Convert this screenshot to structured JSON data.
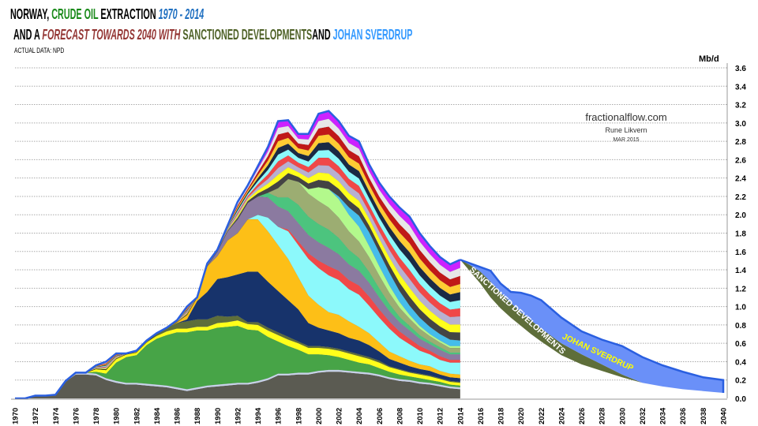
{
  "title": {
    "line1": [
      {
        "text": "NORWAY, ",
        "color": "#000000",
        "italic": false
      },
      {
        "text": "CRUDE OIL",
        "color": "#1a8a1a",
        "italic": false
      },
      {
        "text": " EXTRACTION ",
        "color": "#000000",
        "italic": false
      },
      {
        "text": "1970 - 2014",
        "color": "#1f6fc0",
        "italic": true
      }
    ],
    "line2": [
      {
        "text": "AND A ",
        "color": "#000000",
        "italic": false
      },
      {
        "text": "FORECAST TOWARDS 2040 WITH ",
        "color": "#943634",
        "italic": true
      },
      {
        "text": "SANCTIONED DEVELOPMENTS",
        "color": "#4f6228",
        "italic": false
      },
      {
        "text": "AND ",
        "color": "#000000",
        "italic": false
      },
      {
        "text": "JOHAN SVERDRUP",
        "color": "#3399ff",
        "italic": false
      }
    ],
    "source": "ACTUAL DATA: NPD"
  },
  "credits": {
    "site": "fractionalflow.com",
    "author": "Rune Likvern",
    "date": "MAR 2015"
  },
  "chart_data": {
    "type": "area",
    "stacked": true,
    "ylabel": "Mb/d",
    "ylim": [
      0,
      3.6
    ],
    "yticks": [
      "0.0",
      "0.2",
      "0.4",
      "0.6",
      "0.8",
      "1.0",
      "1.2",
      "1.4",
      "1.6",
      "1.8",
      "2.0",
      "2.2",
      "2.4",
      "2.6",
      "2.8",
      "3.0",
      "3.2",
      "3.4",
      "3.6"
    ],
    "xlim": [
      1970,
      2040
    ],
    "xticks": [
      "1970",
      "1972",
      "1974",
      "1976",
      "1978",
      "1980",
      "1982",
      "1984",
      "1986",
      "1988",
      "1990",
      "1992",
      "1994",
      "1996",
      "1998",
      "2000",
      "2002",
      "2004",
      "2006",
      "2008",
      "2010",
      "2012",
      "2014",
      "2016",
      "2018",
      "2020",
      "2022",
      "2024",
      "2026",
      "2028",
      "2030",
      "2032",
      "2034",
      "2036",
      "2038",
      "2040"
    ],
    "y_axis_side": "right",
    "grid": "horizontal dotted",
    "actual": {
      "years_start": 1970,
      "years_end": 2014,
      "total": [
        0,
        0,
        0.03,
        0.03,
        0.04,
        0.19,
        0.28,
        0.28,
        0.36,
        0.4,
        0.49,
        0.49,
        0.52,
        0.63,
        0.71,
        0.77,
        0.85,
        1.0,
        1.1,
        1.47,
        1.62,
        1.88,
        2.14,
        2.32,
        2.53,
        2.74,
        3.02,
        3.03,
        2.88,
        2.88,
        3.1,
        3.13,
        3.02,
        2.86,
        2.8,
        2.55,
        2.35,
        2.2,
        2.08,
        1.98,
        1.8,
        1.66,
        1.54,
        1.46,
        1.51
      ],
      "total_outline_color": "#2a5fe0",
      "layers": [
        {
          "color": "#5b5b52",
          "values": [
            0,
            0,
            0.03,
            0.03,
            0.04,
            0.18,
            0.26,
            0.26,
            0.25,
            0.2,
            0.17,
            0.15,
            0.15,
            0.14,
            0.13,
            0.12,
            0.1,
            0.08,
            0.1,
            0.12,
            0.13,
            0.14,
            0.15,
            0.15,
            0.17,
            0.2,
            0.25,
            0.25,
            0.26,
            0.26,
            0.28,
            0.29,
            0.29,
            0.28,
            0.27,
            0.26,
            0.24,
            0.21,
            0.19,
            0.18,
            0.16,
            0.15,
            0.13,
            0.11,
            0.1
          ]
        },
        {
          "color": "#c9d3ea",
          "values": [
            0,
            0,
            0,
            0,
            0,
            0.01,
            0.02,
            0.02,
            0.02,
            0.02,
            0.02,
            0.02,
            0.02,
            0.02,
            0.02,
            0.02,
            0.02,
            0.02,
            0.02,
            0.02,
            0.02,
            0.02,
            0.02,
            0.02,
            0.02,
            0.02,
            0.02,
            0.02,
            0.02,
            0.02,
            0.02,
            0.02,
            0.02,
            0.02,
            0.02,
            0.02,
            0.02,
            0.02,
            0.02,
            0.02,
            0.02,
            0.02,
            0.02,
            0.02,
            0.02
          ]
        },
        {
          "color": "#47a447",
          "values": [
            0,
            0,
            0,
            0,
            0,
            0,
            0,
            0,
            0.02,
            0.05,
            0.2,
            0.28,
            0.3,
            0.42,
            0.5,
            0.55,
            0.6,
            0.62,
            0.62,
            0.6,
            0.62,
            0.62,
            0.62,
            0.58,
            0.55,
            0.45,
            0.35,
            0.3,
            0.25,
            0.2,
            0.18,
            0.16,
            0.14,
            0.12,
            0.1,
            0.09,
            0.07,
            0.06,
            0.05,
            0.04,
            0.04,
            0.03,
            0.03,
            0.02,
            0.02
          ]
        },
        {
          "color": "#ffff1a",
          "values": [
            0,
            0,
            0,
            0,
            0,
            0,
            0,
            0,
            0.03,
            0.04,
            0.04,
            0.03,
            0.03,
            0.03,
            0.03,
            0.04,
            0.04,
            0.04,
            0.04,
            0.04,
            0.05,
            0.05,
            0.06,
            0.06,
            0.06,
            0.07,
            0.07,
            0.07,
            0.07,
            0.07,
            0.07,
            0.07,
            0.07,
            0.07,
            0.07,
            0.06,
            0.06,
            0.05,
            0.05,
            0.04,
            0.04,
            0.04,
            0.03,
            0.03,
            0.03
          ]
        },
        {
          "color": "#5e6e3a",
          "values": [
            0,
            0,
            0,
            0,
            0,
            0,
            0,
            0,
            0,
            0,
            0,
            0,
            0,
            0,
            0.02,
            0.04,
            0.06,
            0.08,
            0.08,
            0.08,
            0.08,
            0.06,
            0.05,
            0.02,
            0.03,
            0.03,
            0.03,
            0.03,
            0.02,
            0.02,
            0.02,
            0.02,
            0.02,
            0.02,
            0.02,
            0.02,
            0.02,
            0.01,
            0.01,
            0.01,
            0.01,
            0.01,
            0.01,
            0.01,
            0.01
          ]
        },
        {
          "color": "#17336b",
          "values": [
            0,
            0,
            0,
            0,
            0,
            0,
            0,
            0,
            0,
            0,
            0,
            0,
            0,
            0,
            0,
            0,
            0,
            0.02,
            0.2,
            0.3,
            0.4,
            0.43,
            0.45,
            0.55,
            0.55,
            0.5,
            0.45,
            0.4,
            0.35,
            0.25,
            0.2,
            0.18,
            0.17,
            0.15,
            0.15,
            0.13,
            0.1,
            0.08,
            0.07,
            0.06,
            0.05,
            0.05,
            0.04,
            0.04,
            0.04
          ]
        },
        {
          "color": "#fdbf17",
          "values": [
            0,
            0,
            0,
            0,
            0,
            0,
            0,
            0,
            0,
            0,
            0,
            0,
            0,
            0,
            0,
            0,
            0.01,
            0.05,
            0.04,
            0.28,
            0.25,
            0.4,
            0.45,
            0.57,
            0.57,
            0.55,
            0.5,
            0.45,
            0.35,
            0.3,
            0.25,
            0.2,
            0.2,
            0.18,
            0.15,
            0.13,
            0.1,
            0.08,
            0.07,
            0.06,
            0.05,
            0.05,
            0.04,
            0.04,
            0.04
          ]
        },
        {
          "color": "#8cf9fb",
          "values": [
            0,
            0,
            0,
            0,
            0,
            0,
            0,
            0,
            0,
            0,
            0,
            0,
            0,
            0,
            0,
            0,
            0,
            0,
            0,
            0,
            0,
            0,
            0,
            0,
            0.05,
            0.15,
            0.2,
            0.3,
            0.35,
            0.4,
            0.4,
            0.4,
            0.38,
            0.35,
            0.35,
            0.3,
            0.27,
            0.25,
            0.2,
            0.18,
            0.15,
            0.13,
            0.12,
            0.12,
            0.13
          ]
        },
        {
          "color": "#f04848",
          "values": [
            0,
            0,
            0,
            0,
            0,
            0,
            0,
            0,
            0,
            0,
            0,
            0,
            0,
            0,
            0,
            0,
            0,
            0,
            0,
            0,
            0,
            0,
            0,
            0,
            0,
            0,
            0,
            0.02,
            0.04,
            0.06,
            0.08,
            0.1,
            0.1,
            0.1,
            0.1,
            0.1,
            0.09,
            0.08,
            0.07,
            0.06,
            0.05,
            0.04,
            0.04,
            0.03,
            0.03
          ]
        },
        {
          "color": "#8b7aa0",
          "values": [
            0,
            0,
            0,
            0,
            0,
            0,
            0,
            0,
            0,
            0,
            0,
            0,
            0,
            0,
            0,
            0,
            0,
            0,
            0,
            0,
            0.05,
            0.1,
            0.15,
            0.18,
            0.2,
            0.22,
            0.22,
            0.2,
            0.2,
            0.2,
            0.2,
            0.2,
            0.18,
            0.17,
            0.16,
            0.15,
            0.13,
            0.11,
            0.1,
            0.09,
            0.08,
            0.07,
            0.07,
            0.06,
            0.06
          ]
        },
        {
          "color": "#4cc47e",
          "values": [
            0,
            0,
            0,
            0,
            0,
            0,
            0,
            0,
            0,
            0,
            0,
            0,
            0,
            0,
            0,
            0,
            0,
            0,
            0,
            0,
            0,
            0,
            0,
            0,
            0,
            0.05,
            0.1,
            0.15,
            0.2,
            0.2,
            0.2,
            0.2,
            0.18,
            0.16,
            0.14,
            0.12,
            0.1,
            0.08,
            0.06,
            0.05,
            0.04,
            0.03,
            0.03,
            0.02,
            0.02
          ]
        },
        {
          "color": "#9cad72",
          "values": [
            0,
            0,
            0,
            0,
            0,
            0,
            0,
            0,
            0,
            0,
            0,
            0,
            0,
            0,
            0,
            0,
            0,
            0,
            0,
            0,
            0,
            0,
            0,
            0,
            0,
            0,
            0.1,
            0.2,
            0.25,
            0.25,
            0.25,
            0.24,
            0.22,
            0.2,
            0.18,
            0.16,
            0.14,
            0.12,
            0.1,
            0.08,
            0.07,
            0.06,
            0.05,
            0.05,
            0.05
          ]
        },
        {
          "color": "#b3f98c",
          "values": [
            0,
            0,
            0,
            0,
            0,
            0,
            0,
            0,
            0,
            0,
            0,
            0,
            0,
            0,
            0,
            0,
            0,
            0,
            0,
            0,
            0,
            0,
            0,
            0,
            0,
            0,
            0,
            0,
            0,
            0.05,
            0.15,
            0.2,
            0.2,
            0.18,
            0.16,
            0.12,
            0.1,
            0.08,
            0.06,
            0.04,
            0.03,
            0.02,
            0.02,
            0.02,
            0.02
          ]
        },
        {
          "color": "#45bdea",
          "values": [
            0,
            0,
            0,
            0,
            0,
            0,
            0,
            0,
            0,
            0,
            0,
            0,
            0,
            0,
            0,
            0,
            0,
            0,
            0,
            0,
            0,
            0,
            0,
            0,
            0,
            0,
            0,
            0,
            0,
            0,
            0,
            0,
            0.03,
            0.08,
            0.12,
            0.15,
            0.15,
            0.14,
            0.12,
            0.1,
            0.09,
            0.08,
            0.07,
            0.07,
            0.06
          ]
        }
      ],
      "other_fields_colors": [
        "#444444",
        "#ffff1a",
        "#b8b0d0",
        "#f04848",
        "#8cf9fb",
        "#1a2a44",
        "#ffcc33",
        "#c01818",
        "#e7e7e7",
        "#cc22ff"
      ]
    },
    "forecast": {
      "years": [
        2014,
        2015,
        2016,
        2017,
        2018,
        2019,
        2020,
        2021,
        2022,
        2024,
        2026,
        2028,
        2030,
        2032,
        2034,
        2036,
        2038,
        2040
      ],
      "existing_lower_edge": [
        1.51,
        1.38,
        1.25,
        1.1,
        0.98,
        0.88,
        0.79,
        0.7,
        0.62,
        0.47,
        0.37,
        0.3,
        0.23,
        0.17,
        0.13,
        0.1,
        0.08,
        0.06
      ],
      "sanctioned_developments_top": [
        1.51,
        1.45,
        1.38,
        1.27,
        1.15,
        1.04,
        0.94,
        0.85,
        0.76,
        0.6,
        0.48,
        0.37,
        0.26,
        0.17,
        0.13,
        0.1,
        0.08,
        0.06
      ],
      "johan_sverdrup_top": [
        1.51,
        1.47,
        1.43,
        1.39,
        1.25,
        1.16,
        1.15,
        1.12,
        1.07,
        0.88,
        0.73,
        0.64,
        0.57,
        0.45,
        0.36,
        0.29,
        0.23,
        0.2
      ],
      "sanctioned_label": "SANCTIONED DEVELOPMENTS",
      "johan_sverdrup_label": "JOHAN SVERDRUP",
      "sanctioned_color": "#5e6e3a",
      "johan_sverdrup_color": "#6a90f8",
      "johan_sverdrup_outline": "#2a5fe0",
      "johan_sverdrup_label_color": "#ffff00"
    }
  }
}
